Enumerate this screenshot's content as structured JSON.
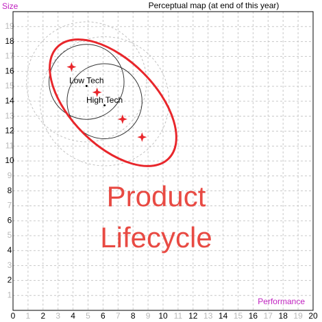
{
  "chart_data": {
    "type": "perceptual-map",
    "title": "Perceptual map (at end of this year)",
    "x_label": "Performance",
    "y_label": "Size",
    "xlim": [
      0,
      20
    ],
    "ylim": [
      0,
      20
    ],
    "xticks": [
      0,
      1,
      2,
      3,
      4,
      5,
      6,
      7,
      8,
      9,
      10,
      11,
      12,
      13,
      14,
      15,
      16,
      17,
      18,
      19,
      20
    ],
    "yticks": [
      1,
      2,
      3,
      4,
      5,
      6,
      7,
      8,
      9,
      10,
      11,
      12,
      13,
      14,
      15,
      16,
      17,
      18,
      19
    ],
    "grid": true,
    "segments": [
      {
        "name": "Low Tech",
        "x": 4.9,
        "y": 15.3,
        "r": 2.5,
        "outer_r": 4
      },
      {
        "name": "High Tech",
        "x": 6.1,
        "y": 14.0,
        "r": 2.5,
        "outer_r": 4.3
      }
    ],
    "products": {
      "color": "#e8262b",
      "x": [
        3.9,
        5.6,
        7.3,
        8.6
      ],
      "values": [
        16.3,
        14.6,
        12.8,
        11.6
      ]
    },
    "annotations": [
      "Product",
      "Lifecycle"
    ]
  }
}
